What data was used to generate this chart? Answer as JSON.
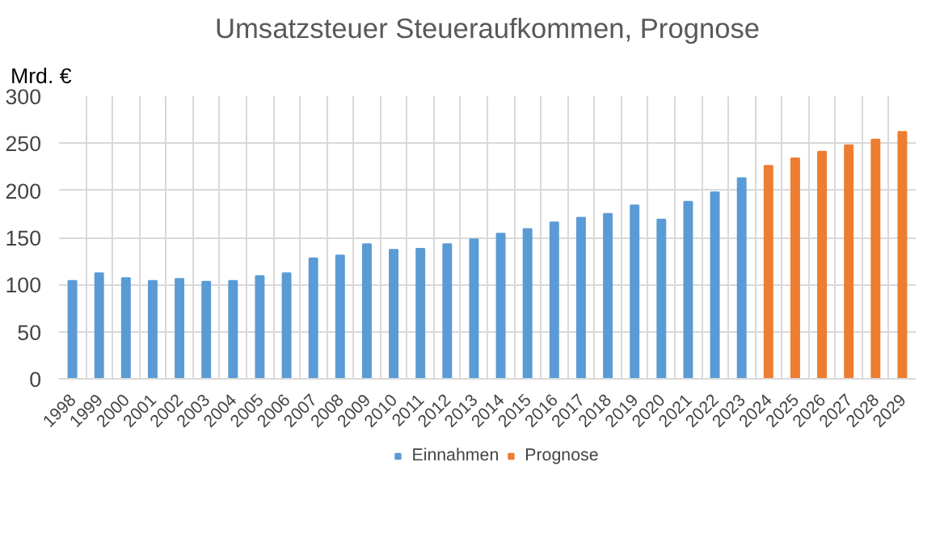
{
  "chart_data": {
    "type": "bar",
    "title": "Umsatzsteuer Steueraufkommen, Prognose",
    "ylabel": "Mrd. €",
    "categories": [
      "1998",
      "1999",
      "2000",
      "2001",
      "2002",
      "2003",
      "2004",
      "2005",
      "2006",
      "2007",
      "2008",
      "2009",
      "2010",
      "2011",
      "2012",
      "2013",
      "2014",
      "2015",
      "2016",
      "2017",
      "2018",
      "2019",
      "2020",
      "2021",
      "2022",
      "2023",
      "2024",
      "2025",
      "2026",
      "2027",
      "2028",
      "2029"
    ],
    "series": [
      {
        "name": "Einnahmen",
        "color": "#5b9bd5",
        "values": [
          104,
          112,
          107,
          104,
          106,
          103,
          104,
          109,
          112,
          128,
          131,
          143,
          137,
          138,
          143,
          148,
          154,
          159,
          166,
          171,
          175,
          184,
          169,
          188,
          198,
          213,
          null,
          null,
          null,
          null,
          null,
          null
        ]
      },
      {
        "name": "Prognose",
        "color": "#ed7d31",
        "values": [
          null,
          null,
          null,
          null,
          null,
          null,
          null,
          null,
          null,
          null,
          null,
          null,
          null,
          null,
          null,
          null,
          null,
          null,
          null,
          null,
          null,
          null,
          null,
          null,
          null,
          null,
          226,
          234,
          241,
          248,
          254,
          262
        ]
      }
    ],
    "ylim": [
      0,
      300
    ],
    "yticks": [
      0,
      50,
      100,
      150,
      200,
      250,
      300
    ],
    "grid": true,
    "legend": "bottom"
  }
}
